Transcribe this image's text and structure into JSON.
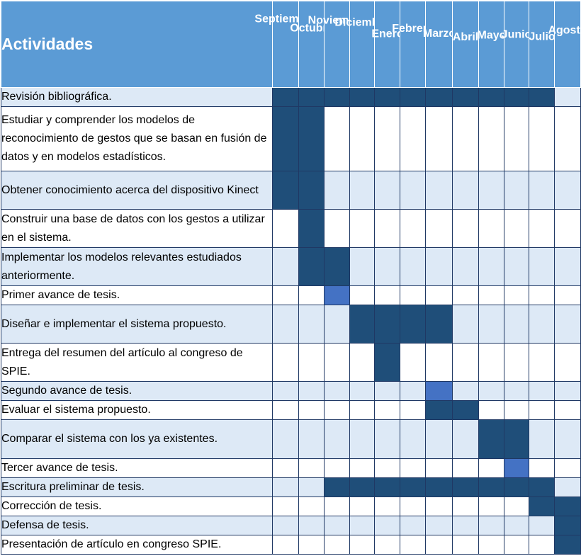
{
  "header": {
    "title": "Actividades",
    "months": [
      "Septiembre",
      "Octubre",
      "Noviembre",
      "Diciembre",
      "Enero",
      "Febrero",
      "Marzo",
      "Abril",
      "Mayo",
      "Junio",
      "Julio",
      "Agosto"
    ]
  },
  "colors": {
    "header": "#5b9bd5",
    "dark_fill": "#1f4e79",
    "milestone_fill": "#4472c4",
    "band": "#dde9f6"
  },
  "rows": [
    {
      "label": "Revisión bibliográfica.",
      "fills": [
        "d",
        "d",
        "d",
        "d",
        "d",
        "d",
        "d",
        "d",
        "d",
        "d",
        "d",
        ""
      ]
    },
    {
      "label": "Estudiar y comprender los modelos de reconocimiento de gestos que se basan en fusión de datos y en modelos estadísticos.",
      "fills": [
        "d",
        "d",
        "",
        "",
        "",
        "",
        "",
        "",
        "",
        "",
        "",
        ""
      ]
    },
    {
      "label": "Obtener conocimiento acerca del dispositivo Kinect",
      "fills": [
        "d",
        "d",
        "",
        "",
        "",
        "",
        "",
        "",
        "",
        "",
        "",
        ""
      ]
    },
    {
      "label": "Construir una base de datos con los gestos a utilizar en el sistema.",
      "fills": [
        "",
        "d",
        "",
        "",
        "",
        "",
        "",
        "",
        "",
        "",
        "",
        ""
      ]
    },
    {
      "label": "Implementar  los modelos relevantes estudiados anteriormente.",
      "fills": [
        "",
        "d",
        "d",
        "",
        "",
        "",
        "",
        "",
        "",
        "",
        "",
        ""
      ]
    },
    {
      "label": "Primer avance de tesis.",
      "fills": [
        "",
        "",
        "m",
        "",
        "",
        "",
        "",
        "",
        "",
        "",
        "",
        ""
      ]
    },
    {
      "label": "Diseñar  e implementar el sistema propuesto.",
      "fills": [
        "",
        "",
        "",
        "d",
        "d",
        "d",
        "d",
        "",
        "",
        "",
        "",
        ""
      ]
    },
    {
      "label": "Entrega del resumen del artículo al congreso de SPIE.",
      "fills": [
        "",
        "",
        "",
        "",
        "d",
        "",
        "",
        "",
        "",
        "",
        "",
        ""
      ]
    },
    {
      "label": "Segundo avance de tesis.",
      "fills": [
        "",
        "",
        "",
        "",
        "",
        "",
        "m",
        "",
        "",
        "",
        "",
        ""
      ]
    },
    {
      "label": "Evaluar el sistema propuesto.",
      "fills": [
        "",
        "",
        "",
        "",
        "",
        "",
        "d",
        "d",
        "",
        "",
        "",
        ""
      ]
    },
    {
      "label": "Comparar el sistema con los ya existentes.",
      "fills": [
        "",
        "",
        "",
        "",
        "",
        "",
        "",
        "",
        "d",
        "d",
        "",
        ""
      ]
    },
    {
      "label": "Tercer avance de tesis.",
      "fills": [
        "",
        "",
        "",
        "",
        "",
        "",
        "",
        "",
        "",
        "m",
        "",
        ""
      ]
    },
    {
      "label": "Escritura preliminar de tesis.",
      "fills": [
        "",
        "",
        "d",
        "d",
        "d",
        "d",
        "d",
        "d",
        "d",
        "d",
        "d",
        ""
      ]
    },
    {
      "label": "Corrección de tesis.",
      "fills": [
        "",
        "",
        "",
        "",
        "",
        "",
        "",
        "",
        "",
        "",
        "d",
        "d"
      ]
    },
    {
      "label": "Defensa de tesis.",
      "fills": [
        "",
        "",
        "",
        "",
        "",
        "",
        "",
        "",
        "",
        "",
        "",
        "d"
      ]
    },
    {
      "label": "Presentación de artículo en congreso  SPIE.",
      "fills": [
        "",
        "",
        "",
        "",
        "",
        "",
        "",
        "",
        "",
        "",
        "",
        "d"
      ]
    }
  ]
}
